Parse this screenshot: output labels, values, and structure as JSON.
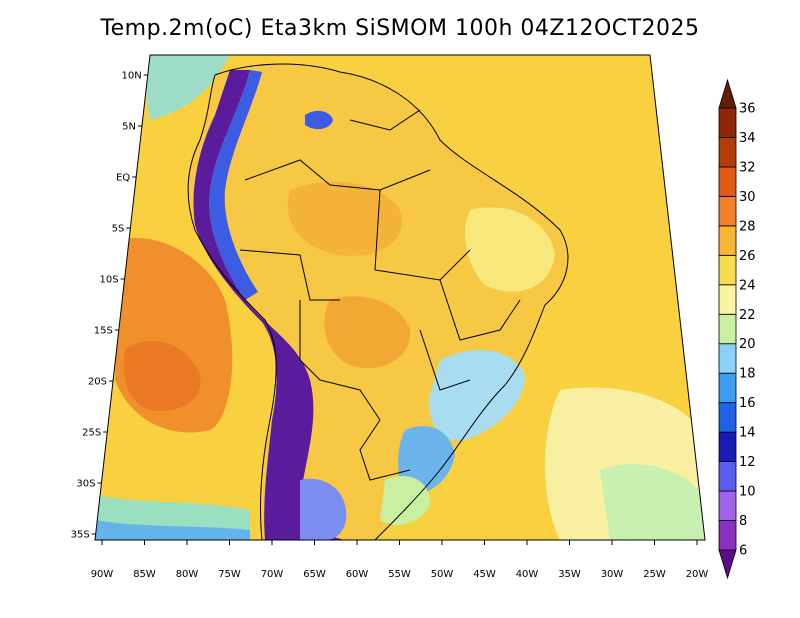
{
  "title": "Temp.2m(oC) Eta3km SiSMOM 100h 04Z12OCT2025",
  "map": {
    "lat_labels": [
      "10N",
      "5N",
      "EQ",
      "5S",
      "10S",
      "15S",
      "20S",
      "25S",
      "30S",
      "35S"
    ],
    "lon_labels": [
      "90W",
      "85W",
      "80W",
      "75W",
      "70W",
      "65W",
      "60W",
      "55W",
      "50W",
      "45W",
      "40W",
      "35W",
      "30W",
      "25W",
      "20W"
    ]
  },
  "colorbar": {
    "unit": "oC",
    "levels": [
      "6",
      "8",
      "10",
      "12",
      "14",
      "16",
      "18",
      "20",
      "22",
      "24",
      "26",
      "28",
      "30",
      "32",
      "34",
      "36"
    ],
    "colors": [
      "#5a0e8c",
      "#8b2fc0",
      "#a062e8",
      "#5a5cf0",
      "#1c1ab4",
      "#1f64e6",
      "#3c9cf0",
      "#8cd2f8",
      "#c8f0a0",
      "#f8f4a0",
      "#f8dc50",
      "#f8b432",
      "#f08228",
      "#e05a14",
      "#b43c0a",
      "#8c2808",
      "#641e08"
    ]
  }
}
